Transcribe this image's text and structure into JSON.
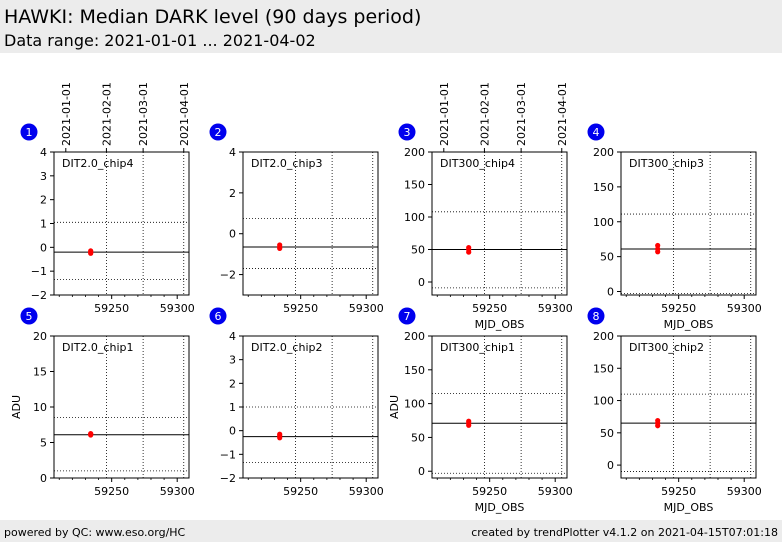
{
  "header": {
    "title": "HAWKI: Median DARK level (90 days period)",
    "subtitle": "Data range: 2021-01-01 ... 2021-04-02"
  },
  "footer": {
    "left": "powered by QC: www.eso.org/HC",
    "right": "created by trendPlotter v4.1.2 on 2021-04-15T07:01:18"
  },
  "colors": {
    "header_bg": "#ececec",
    "marker_badge": "#0000ee",
    "data_points": "#ff0000",
    "median_line": "#000000"
  },
  "chart_data": [
    {
      "type": "scatter",
      "panel": "1",
      "label": "DIT2.0_chip4",
      "ylabel": "",
      "xlabel": "",
      "xlim": [
        59206,
        59309
      ],
      "ylim": [
        -2,
        4
      ],
      "yticks": [
        -2,
        -1,
        0,
        1,
        2,
        3,
        4
      ],
      "xticks": [
        59250,
        59300
      ],
      "date_ticks": [
        {
          "label": "2021-01-01",
          "mjd": 59215
        },
        {
          "label": "2021-02-01",
          "mjd": 59246
        },
        {
          "label": "2021-03-01",
          "mjd": 59274
        },
        {
          "label": "2021-04-01",
          "mjd": 59305
        }
      ],
      "median": -0.2,
      "limits": [
        1.05,
        -1.35
      ],
      "points": [
        {
          "x": 59234,
          "y": -0.15
        },
        {
          "x": 59234,
          "y": -0.2
        },
        {
          "x": 59234,
          "y": -0.25
        }
      ]
    },
    {
      "type": "scatter",
      "panel": "2",
      "label": "DIT2.0_chip3",
      "ylabel": "",
      "xlabel": "",
      "xlim": [
        59206,
        59309
      ],
      "ylim": [
        -3,
        4
      ],
      "yticks": [
        -2,
        0,
        2,
        4
      ],
      "xticks": [
        59250,
        59300
      ],
      "median": -0.65,
      "limits": [
        0.75,
        -1.7
      ],
      "points": [
        {
          "x": 59234,
          "y": -0.55
        },
        {
          "x": 59234,
          "y": -0.65
        },
        {
          "x": 59234,
          "y": -0.72
        }
      ]
    },
    {
      "type": "scatter",
      "panel": "3",
      "label": "DIT300_chip4",
      "ylabel": "",
      "xlabel": "MJD_OBS",
      "xlim": [
        59206,
        59309
      ],
      "ylim": [
        -20,
        200
      ],
      "yticks": [
        0,
        50,
        100,
        150,
        200
      ],
      "xticks": [
        59250,
        59300
      ],
      "date_ticks": [
        {
          "label": "2021-01-01",
          "mjd": 59215
        },
        {
          "label": "2021-02-01",
          "mjd": 59246
        },
        {
          "label": "2021-03-01",
          "mjd": 59274
        },
        {
          "label": "2021-04-01",
          "mjd": 59305
        }
      ],
      "median": 50,
      "limits": [
        108,
        -9
      ],
      "points": [
        {
          "x": 59234,
          "y": 46
        },
        {
          "x": 59234,
          "y": 50
        },
        {
          "x": 59234,
          "y": 53
        }
      ]
    },
    {
      "type": "scatter",
      "panel": "4",
      "label": "DIT300_chip3",
      "ylabel": "",
      "xlabel": "MJD_OBS",
      "xlim": [
        59206,
        59309
      ],
      "ylim": [
        -5,
        200
      ],
      "yticks": [
        0,
        50,
        100,
        150,
        200
      ],
      "xticks": [
        59250,
        59300
      ],
      "median": 61,
      "limits": [
        111,
        -3
      ],
      "points": [
        {
          "x": 59234,
          "y": 57
        },
        {
          "x": 59234,
          "y": 61
        },
        {
          "x": 59234,
          "y": 66
        }
      ]
    },
    {
      "type": "scatter",
      "panel": "5",
      "label": "DIT2.0_chip1",
      "ylabel": "ADU",
      "xlabel": "",
      "xlim": [
        59206,
        59309
      ],
      "ylim": [
        0,
        20
      ],
      "yticks": [
        0,
        5,
        10,
        15,
        20
      ],
      "xticks": [
        59250,
        59300
      ],
      "median": 6.1,
      "limits": [
        8.5,
        1.0
      ],
      "points": [
        {
          "x": 59234,
          "y": 6.05
        },
        {
          "x": 59234,
          "y": 6.15
        },
        {
          "x": 59234,
          "y": 6.25
        }
      ]
    },
    {
      "type": "scatter",
      "panel": "6",
      "label": "DIT2.0_chip2",
      "ylabel": "",
      "xlabel": "",
      "xlim": [
        59206,
        59309
      ],
      "ylim": [
        -2,
        4
      ],
      "yticks": [
        -2,
        -1,
        0,
        1,
        2,
        3,
        4
      ],
      "xticks": [
        59250,
        59300
      ],
      "median": -0.25,
      "limits": [
        1.0,
        -1.35
      ],
      "points": [
        {
          "x": 59234,
          "y": -0.15
        },
        {
          "x": 59234,
          "y": -0.22
        },
        {
          "x": 59234,
          "y": -0.3
        }
      ]
    },
    {
      "type": "scatter",
      "panel": "7",
      "label": "DIT300_chip1",
      "ylabel": "ADU",
      "xlabel": "MJD_OBS",
      "xlim": [
        59206,
        59309
      ],
      "ylim": [
        -10,
        200
      ],
      "yticks": [
        0,
        50,
        100,
        150,
        200
      ],
      "xticks": [
        59250,
        59300
      ],
      "median": 71,
      "limits": [
        115,
        -3
      ],
      "points": [
        {
          "x": 59234,
          "y": 68
        },
        {
          "x": 59234,
          "y": 71
        },
        {
          "x": 59234,
          "y": 74
        }
      ]
    },
    {
      "type": "scatter",
      "panel": "8",
      "label": "DIT300_chip2",
      "ylabel": "",
      "xlabel": "MJD_OBS",
      "xlim": [
        59206,
        59309
      ],
      "ylim": [
        -20,
        200
      ],
      "yticks": [
        0,
        50,
        100,
        150,
        200
      ],
      "xticks": [
        59250,
        59300
      ],
      "median": 65,
      "limits": [
        110,
        -10
      ],
      "points": [
        {
          "x": 59234,
          "y": 61
        },
        {
          "x": 59234,
          "y": 65
        },
        {
          "x": 59234,
          "y": 69
        }
      ]
    }
  ]
}
